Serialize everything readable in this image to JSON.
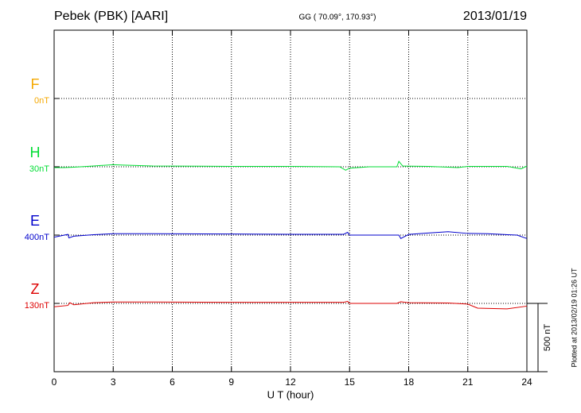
{
  "chart_data": {
    "type": "line",
    "title": "Pebek (PBK)  [AARI]",
    "subtitle": "GG ( 70.09°, 170.93°)",
    "date": "2013/01/19",
    "x_label": "U T (hour)",
    "note": "Plotted at 2013/02/19 01:26 UT",
    "xlim": [
      0,
      24
    ],
    "xticks": [
      0,
      3,
      6,
      9,
      12,
      15,
      18,
      21,
      24
    ],
    "grid": true,
    "scale_bar": {
      "value": 500,
      "label": "500 nT"
    },
    "series": [
      {
        "name": "F",
        "offset": "0nT",
        "color": "#f5a800",
        "x": [],
        "values": []
      },
      {
        "name": "H",
        "offset": "30nT",
        "color": "#00dd33",
        "x": [
          0,
          0.5,
          1,
          2,
          3,
          3.5,
          5,
          9,
          12,
          14.5,
          14.8,
          15,
          16,
          17.4,
          17.5,
          17.7,
          19,
          20.5,
          21,
          23,
          23.7,
          24
        ],
        "values": [
          -6,
          -6,
          -3,
          6,
          15,
          12,
          6,
          3,
          3,
          0,
          -25,
          -10,
          0,
          0,
          40,
          5,
          3,
          -6,
          3,
          3,
          -15,
          5
        ]
      },
      {
        "name": "E",
        "offset": "400nT",
        "color": "#0000cc",
        "x": [
          0,
          0.7,
          0.75,
          1,
          2,
          3,
          5,
          9,
          12,
          14.7,
          14.9,
          15,
          17.5,
          17.6,
          18,
          19,
          20,
          21,
          22,
          23.5,
          24
        ],
        "values": [
          -15,
          5,
          -20,
          -8,
          3,
          10,
          10,
          8,
          6,
          6,
          20,
          0,
          0,
          -25,
          5,
          15,
          25,
          12,
          10,
          0,
          -25
        ]
      },
      {
        "name": "Z",
        "offset": "130nT",
        "color": "#dd0000",
        "x": [
          0,
          0.7,
          0.8,
          1,
          2,
          3,
          5,
          9,
          12,
          14.7,
          14.9,
          15,
          17.4,
          17.6,
          18,
          20,
          21,
          21.5,
          23,
          24
        ],
        "values": [
          -25,
          -15,
          5,
          -10,
          5,
          10,
          10,
          8,
          8,
          8,
          15,
          0,
          0,
          12,
          5,
          3,
          -5,
          -35,
          -40,
          -20
        ]
      }
    ]
  }
}
